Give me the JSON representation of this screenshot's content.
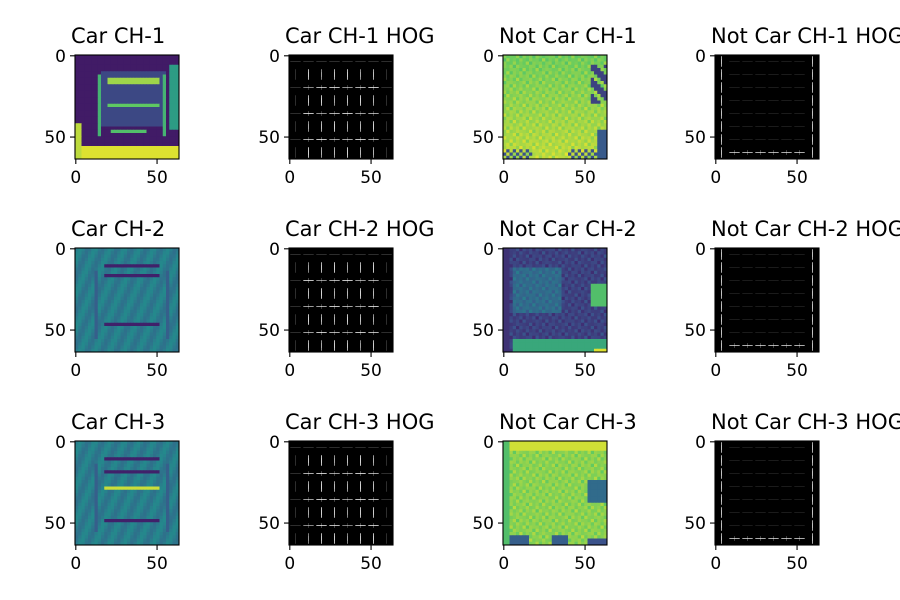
{
  "figure": {
    "layout": "3 rows x 4 columns grid of image subplots",
    "panels": [
      {
        "title": "Car CH-1",
        "kind": "car-channel-image",
        "channel": 1,
        "colormap": "viridis"
      },
      {
        "title": "Car CH-1 HOG",
        "kind": "car-hog-image",
        "channel": 1,
        "colormap": "gray"
      },
      {
        "title": "Not Car CH-1",
        "kind": "notcar-channel-image",
        "channel": 1,
        "colormap": "viridis"
      },
      {
        "title": "Not Car CH-1 HOG",
        "kind": "notcar-hog-image",
        "channel": 1,
        "colormap": "gray"
      },
      {
        "title": "Car CH-2",
        "kind": "car-channel-image",
        "channel": 2,
        "colormap": "viridis"
      },
      {
        "title": "Car CH-2 HOG",
        "kind": "car-hog-image",
        "channel": 2,
        "colormap": "gray"
      },
      {
        "title": "Not Car CH-2",
        "kind": "notcar-channel-image",
        "channel": 2,
        "colormap": "viridis"
      },
      {
        "title": "Not Car CH-2 HOG",
        "kind": "notcar-hog-image",
        "channel": 2,
        "colormap": "gray"
      },
      {
        "title": "Car CH-3",
        "kind": "car-channel-image",
        "channel": 3,
        "colormap": "viridis"
      },
      {
        "title": "Car CH-3 HOG",
        "kind": "car-hog-image",
        "channel": 3,
        "colormap": "gray"
      },
      {
        "title": "Not Car CH-3",
        "kind": "notcar-channel-image",
        "channel": 3,
        "colormap": "viridis"
      },
      {
        "title": "Not Car CH-3 HOG",
        "kind": "notcar-hog-image",
        "channel": 3,
        "colormap": "gray"
      }
    ],
    "colors": {
      "viridis_dark": "#440154",
      "viridis_mid": "#21918c",
      "viridis_bright": "#fde725",
      "hog_background": "#000000",
      "hog_gradient": "#ffffff"
    }
  },
  "chart_data": {
    "type": "heatmap",
    "subplots": 12,
    "image_size": [
      64,
      64
    ],
    "xlim": [
      0,
      63
    ],
    "ylim": [
      63,
      0
    ],
    "xticks": [
      0,
      50
    ],
    "yticks": [
      0,
      50
    ],
    "xtick_labels": [
      "0",
      "50"
    ],
    "ytick_labels": [
      "0",
      "50"
    ],
    "grid": false
  }
}
